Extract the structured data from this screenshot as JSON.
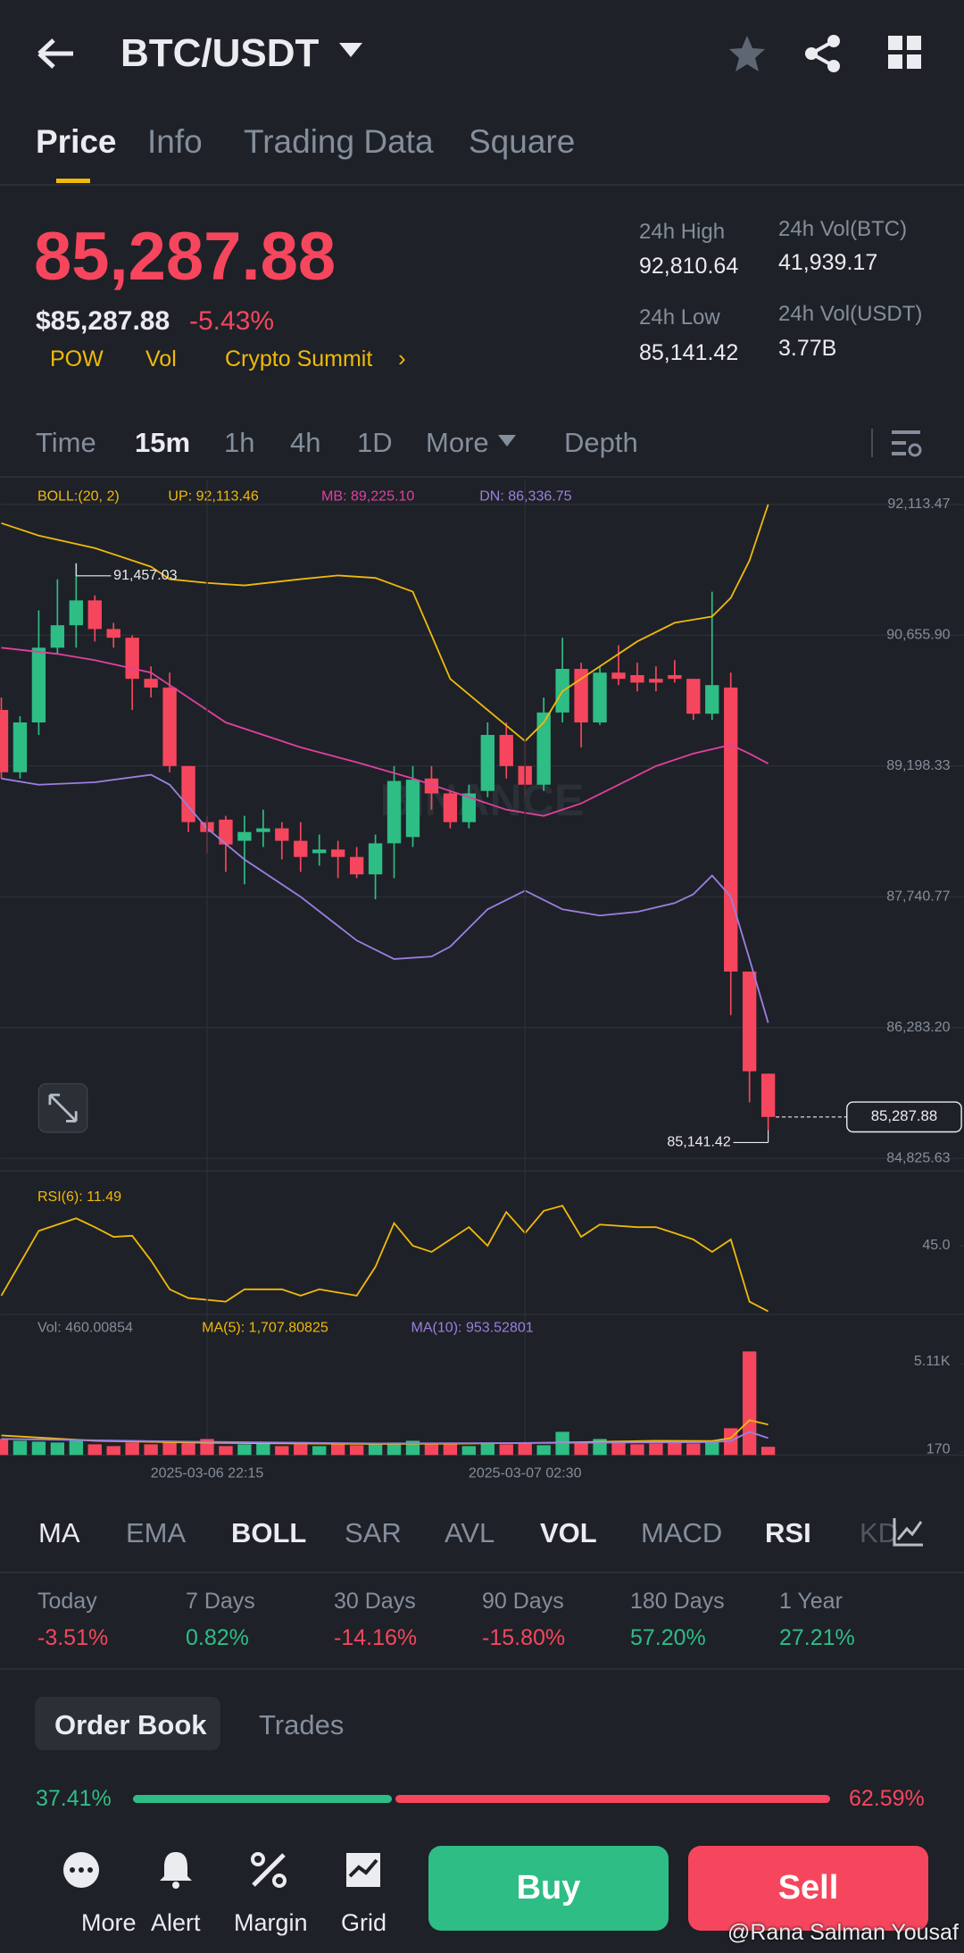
{
  "header": {
    "pair": "BTC/USDT"
  },
  "tabs": [
    "Price",
    "Info",
    "Trading Data",
    "Square"
  ],
  "price": {
    "last": "85,287.88",
    "usd": "$85,287.88",
    "change": "-5.43%",
    "tags": [
      "POW",
      "Vol",
      "Crypto Summit"
    ]
  },
  "stats": [
    {
      "label": "24h High",
      "value": "92,810.64"
    },
    {
      "label": "24h Vol(BTC)",
      "value": "41,939.17"
    },
    {
      "label": "24h Low",
      "value": "85,141.42"
    },
    {
      "label": "24h Vol(USDT)",
      "value": "3.77B"
    }
  ],
  "intervals": [
    "Time",
    "15m",
    "1h",
    "4h",
    "1D",
    "More",
    "Depth"
  ],
  "chart_data": [
    {
      "type": "candlestick",
      "indicator": "BOLL:(20, 2)",
      "watermark": "BINANCE",
      "ylim": [
        84686,
        92391
      ],
      "yticks": [
        {
          "value": 92113.47,
          "label": "92,113.47"
        },
        {
          "value": 90655.9,
          "label": "90,655.90"
        },
        {
          "value": 89198.33,
          "label": "89,198.33"
        },
        {
          "value": 87740.77,
          "label": "87,740.77"
        },
        {
          "value": 86283.2,
          "label": "86,283.20"
        },
        {
          "value": 84825.63,
          "label": "84,825.63"
        }
      ],
      "grid": true,
      "up_color": "#2ebd85",
      "down_color": "#f6465d",
      "high_label": "91,457.03",
      "low_label": "85,141.42",
      "last_label": "85,287.88",
      "open": [
        89823,
        89129,
        89684,
        90517,
        90767,
        91044,
        90725,
        90628,
        90170,
        90073,
        89198,
        88573,
        88601,
        88365,
        88463,
        88504,
        88365,
        88227,
        88268,
        88185,
        87991,
        88337,
        88407,
        89059,
        88893,
        88573,
        88921,
        89545,
        89198,
        88990,
        89795,
        90281,
        89684,
        90239,
        90211,
        90170,
        90211,
        90170,
        89781,
        90073,
        86908,
        85770
      ],
      "high": [
        89962,
        89753,
        90933,
        91280,
        91457.03,
        91100,
        90794,
        90656,
        90309,
        90239,
        89198,
        88643,
        88643,
        88643,
        88712,
        88573,
        88573,
        88435,
        88365,
        88296,
        88435,
        89198,
        89198,
        89198,
        88921,
        88990,
        89684,
        89684,
        89476,
        89962,
        90628,
        90350,
        90309,
        90545,
        90350,
        90309,
        90378,
        90170,
        91141,
        90239,
        86908,
        85770
      ],
      "low": [
        89059,
        89059,
        89545,
        90448,
        90517,
        90586,
        90517,
        89823,
        89962,
        89129,
        88463,
        88227,
        88018,
        87880,
        88296,
        88157,
        88018,
        88088,
        87949,
        87949,
        87713,
        87949,
        88296,
        88712,
        88504,
        88504,
        88851,
        89059,
        88851,
        88921,
        89684,
        89406,
        89656,
        90100,
        90031,
        90031,
        90128,
        89712,
        89712,
        86422,
        85451,
        85141.42
      ],
      "close": [
        89129,
        89684,
        90517,
        90767,
        91044,
        90725,
        90628,
        90170,
        90073,
        89198,
        88573,
        88463,
        88324,
        88463,
        88504,
        88365,
        88185,
        88268,
        88185,
        87991,
        88337,
        89032,
        89046,
        88893,
        88573,
        88893,
        89545,
        89198,
        88990,
        89795,
        90281,
        89684,
        90239,
        90170,
        90128,
        90128,
        90170,
        89781,
        90100,
        86908,
        85797,
        85287.88
      ],
      "series": [
        {
          "name": "UP: 92,113.46",
          "color": "#f0b90b",
          "x": [
            0,
            2,
            5,
            8,
            9,
            11,
            13,
            16,
            18,
            20,
            22,
            23,
            24,
            26,
            28,
            29,
            30,
            32,
            34,
            36,
            38,
            39,
            40,
            41
          ],
          "values": [
            91905,
            91766,
            91627,
            91419,
            91280,
            91239,
            91211,
            91280,
            91322,
            91294,
            91141,
            90656,
            90170,
            89823,
            89476,
            89684,
            90031,
            90309,
            90586,
            90794,
            90864,
            91072,
            91488,
            92113.46
          ]
        },
        {
          "name": "MB: 89,225.10",
          "color": "#e040a0",
          "x": [
            0,
            3,
            5,
            8,
            10,
            12,
            16,
            19,
            22,
            25,
            27,
            29,
            31,
            33,
            35,
            37,
            39,
            40,
            41
          ],
          "values": [
            90517,
            90448,
            90378,
            90239,
            89962,
            89684,
            89406,
            89240,
            89059,
            88851,
            88712,
            88643,
            88782,
            88990,
            89198,
            89337,
            89434,
            89337,
            89225.1
          ]
        },
        {
          "name": "DN: 86,336.75",
          "color": "#9b7fe0",
          "x": [
            0,
            2,
            5,
            8,
            9,
            11,
            13,
            16,
            19,
            21,
            23,
            24,
            26,
            28,
            30,
            32,
            34,
            36,
            37,
            38,
            39,
            40,
            41
          ],
          "values": [
            89059,
            88990,
            89018,
            89101,
            88990,
            88504,
            88157,
            87741,
            87255,
            87047,
            87075,
            87186,
            87602,
            87810,
            87602,
            87532,
            87574,
            87671,
            87769,
            87977,
            87741,
            87047,
            86336.75
          ]
        }
      ]
    },
    {
      "type": "line",
      "ylim": [
        10,
        80
      ],
      "yticks": [
        {
          "value": 45,
          "label": "45.0"
        }
      ],
      "series": [
        {
          "name": "RSI(6): 11.49",
          "color": "#f0b90b",
          "x": [
            0,
            2,
            4,
            5,
            6,
            7,
            8,
            9,
            10,
            12,
            13,
            15,
            16,
            17,
            19,
            20,
            21,
            22,
            23,
            25,
            26,
            27,
            28,
            29,
            30,
            31,
            32,
            34,
            35,
            36,
            37,
            38,
            39,
            40,
            41
          ],
          "values": [
            19.5,
            52.6,
            59.0,
            54.5,
            49.5,
            50.1,
            37.4,
            22.7,
            18.3,
            16.4,
            22.7,
            22.7,
            19.5,
            22.7,
            19.5,
            34.2,
            56.5,
            45.0,
            41.8,
            54.5,
            45.0,
            62.2,
            51.4,
            62.8,
            65.4,
            49.5,
            55.8,
            54.5,
            54.5,
            51.4,
            48.2,
            41.8,
            48.2,
            16.4,
            11.49
          ]
        }
      ]
    },
    {
      "type": "volume",
      "name": "Vol: 460.00854",
      "ylim": [
        0,
        6500
      ],
      "yticks": [
        {
          "value": 5110,
          "label": "5.11K"
        },
        170
      ],
      "xticks": [
        {
          "value": 11,
          "label": "2025-03-06 22:15"
        },
        {
          "value": 28,
          "label": "2025-03-07 02:30"
        }
      ],
      "values": [
        900,
        800,
        750,
        700,
        800,
        600,
        500,
        700,
        600,
        800,
        650,
        900,
        500,
        600,
        700,
        500,
        600,
        500,
        650,
        550,
        600,
        700,
        800,
        600,
        650,
        500,
        700,
        600,
        650,
        550,
        1300,
        700,
        900,
        800,
        600,
        650,
        700,
        650,
        800,
        1500,
        5810,
        460.00854
      ],
      "series": [
        {
          "name": "MA(5): 1,707.80825",
          "color": "#f0b90b",
          "x": [
            0,
            5,
            10,
            15,
            20,
            25,
            30,
            35,
            38,
            39,
            40,
            41
          ],
          "values": [
            1100,
            800,
            700,
            650,
            620,
            640,
            700,
            800,
            780,
            950,
            1950,
            1707.80825
          ]
        },
        {
          "name": "MA(10): 953.52801",
          "color": "#9b7fe0",
          "x": [
            0,
            10,
            20,
            30,
            38,
            39,
            40,
            41
          ],
          "values": [
            900,
            750,
            650,
            680,
            720,
            800,
            1300,
            953.52801
          ]
        }
      ]
    }
  ],
  "indicators": [
    "MA",
    "EMA",
    "BOLL",
    "SAR",
    "AVL",
    "VOL",
    "MACD",
    "RSI",
    "KD"
  ],
  "performance": [
    {
      "period": "Today",
      "change": "-3.51%"
    },
    {
      "period": "7 Days",
      "change": "0.82%"
    },
    {
      "period": "30 Days",
      "change": "-14.16%"
    },
    {
      "period": "90 Days",
      "change": "-15.80%"
    },
    {
      "period": "180 Days",
      "change": "57.20%"
    },
    {
      "period": "1 Year",
      "change": "27.21%"
    }
  ],
  "order_book": {
    "tabs": [
      "Order Book",
      "Trades"
    ],
    "values": [
      37.41,
      62.59
    ],
    "value_labels": [
      "37.41%",
      "62.59%"
    ]
  },
  "bottom": {
    "items": [
      "More",
      "Alert",
      "Margin",
      "Grid"
    ],
    "buy": "Buy",
    "sell": "Sell"
  },
  "credit": "@Rana Salman Yousaf"
}
